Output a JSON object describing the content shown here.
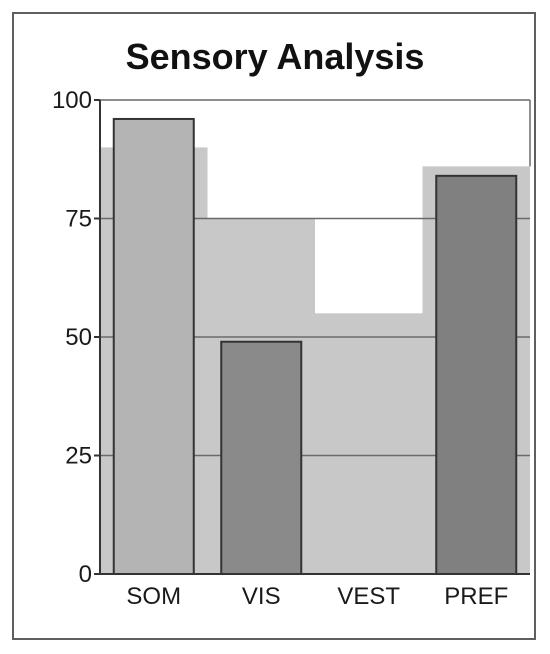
{
  "chart_data": {
    "type": "bar",
    "title": "Sensory Analysis",
    "xlabel": "",
    "ylabel": "",
    "categories": [
      "SOM",
      "VIS",
      "VEST",
      "PREF"
    ],
    "values": [
      96,
      49,
      0,
      84
    ],
    "reference_band": [
      90,
      75,
      55,
      86
    ],
    "ylim": [
      0,
      100
    ],
    "yticks": [
      0,
      25,
      50,
      75,
      100
    ],
    "grid": true,
    "legend": "none",
    "colors": {
      "SOM": "#b4b4b4",
      "VIS": "#8a8a8a",
      "VEST": "#8a8a8a",
      "PREF": "#808080",
      "band": "#c8c8c8",
      "grid": "#6a6a6a",
      "text": "#1a1a1a"
    }
  }
}
